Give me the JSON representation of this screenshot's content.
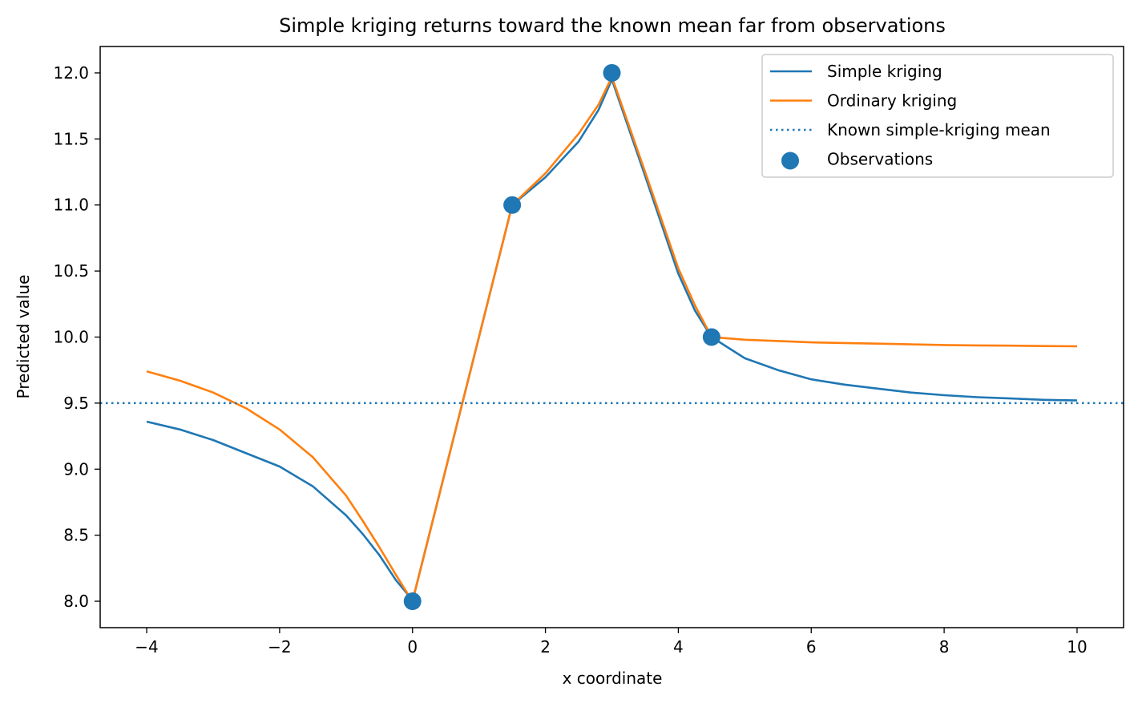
{
  "chart_data": {
    "type": "line",
    "title": "Simple kriging returns toward the known mean far from observations",
    "xlabel": "x coordinate",
    "ylabel": "Predicted value",
    "xlim": [
      -4.7,
      10.7
    ],
    "ylim": [
      7.8,
      12.2
    ],
    "xticks": [
      -4,
      -2,
      0,
      2,
      4,
      6,
      8,
      10
    ],
    "xtick_labels": [
      "−4",
      "−2",
      "0",
      "2",
      "4",
      "6",
      "8",
      "10"
    ],
    "yticks": [
      8.0,
      8.5,
      9.0,
      9.5,
      10.0,
      10.5,
      11.0,
      11.5,
      12.0
    ],
    "ytick_labels": [
      "8.0",
      "8.5",
      "9.0",
      "9.5",
      "10.0",
      "10.5",
      "11.0",
      "11.5",
      "12.0"
    ],
    "grid": false,
    "legend_position": "top-right",
    "series": [
      {
        "name": "Simple kriging",
        "kind": "line",
        "color": "#1f77b4",
        "x": [
          -4.0,
          -3.5,
          -3.0,
          -2.5,
          -2.0,
          -1.5,
          -1.0,
          -0.75,
          -0.5,
          -0.25,
          -0.1,
          0.0,
          0.75,
          1.5,
          2.0,
          2.5,
          2.8,
          3.0,
          3.5,
          4.0,
          4.25,
          4.5,
          5.0,
          5.5,
          6.0,
          6.5,
          7.0,
          7.5,
          8.0,
          8.5,
          9.0,
          9.5,
          10.0
        ],
        "y": [
          9.36,
          9.3,
          9.22,
          9.12,
          9.02,
          8.87,
          8.65,
          8.51,
          8.35,
          8.16,
          8.07,
          8.0,
          9.5,
          11.0,
          11.21,
          11.48,
          11.72,
          11.95,
          11.22,
          10.48,
          10.2,
          10.0,
          9.84,
          9.75,
          9.68,
          9.64,
          9.61,
          9.58,
          9.56,
          9.545,
          9.535,
          9.525,
          9.52
        ]
      },
      {
        "name": "Ordinary kriging",
        "kind": "line",
        "color": "#ff7f0e",
        "x": [
          -4.0,
          -3.5,
          -3.0,
          -2.5,
          -2.0,
          -1.5,
          -1.0,
          -0.75,
          -0.5,
          -0.25,
          -0.1,
          0.0,
          0.75,
          1.5,
          2.0,
          2.5,
          2.8,
          3.0,
          3.5,
          4.0,
          4.25,
          4.5,
          5.0,
          5.5,
          6.0,
          6.5,
          7.0,
          7.5,
          8.0,
          8.5,
          9.0,
          9.5,
          10.0
        ],
        "y": [
          9.74,
          9.67,
          9.58,
          9.46,
          9.3,
          9.09,
          8.8,
          8.61,
          8.41,
          8.2,
          8.08,
          8.0,
          9.5,
          11.0,
          11.24,
          11.54,
          11.76,
          11.97,
          11.25,
          10.52,
          10.24,
          10.0,
          9.98,
          9.97,
          9.96,
          9.955,
          9.95,
          9.945,
          9.94,
          9.937,
          9.935,
          9.932,
          9.93
        ]
      },
      {
        "name": "Known simple-kriging mean",
        "kind": "hline",
        "color": "#1f77b4",
        "y": 9.5
      },
      {
        "name": "Observations",
        "kind": "scatter",
        "color": "#1f77b4",
        "x": [
          0.0,
          1.5,
          3.0,
          4.5
        ],
        "y": [
          8.0,
          11.0,
          12.0,
          10.0
        ]
      }
    ]
  }
}
